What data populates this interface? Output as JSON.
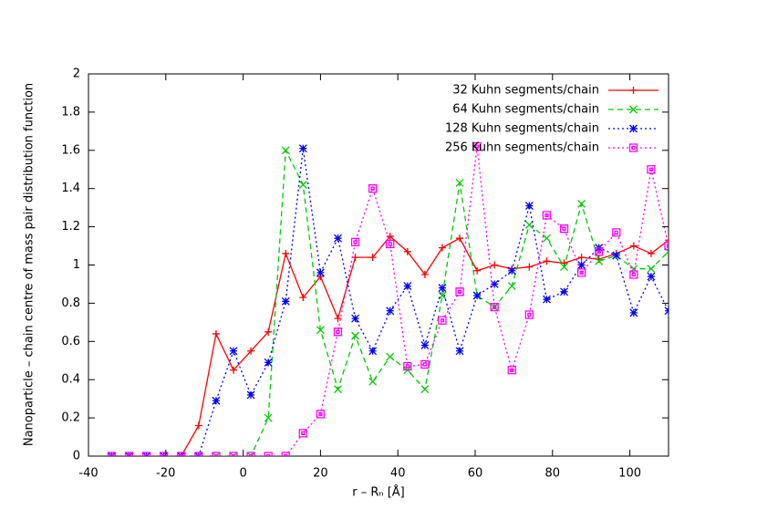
{
  "chart_data": {
    "type": "line",
    "xlabel": "r – Rₙ [Å]",
    "ylabel": "Nanoparticle – chain centre of mass pair distribution function",
    "x": [
      -34,
      -29.5,
      -25,
      -20.5,
      -16,
      -11.5,
      -7,
      -2.5,
      2,
      6.5,
      11,
      15.5,
      20,
      24.5,
      29,
      33.5,
      38,
      42.5,
      47,
      51.5,
      56,
      60.5,
      65,
      69.5,
      74,
      78.5,
      83,
      87.5,
      92,
      96.5,
      101,
      105.5,
      110
    ],
    "series": [
      {
        "name": "32 Kuhn segments/chain",
        "color": "#ff0000",
        "linestyle": "solid",
        "marker": "plus",
        "values": [
          0,
          0,
          0,
          0,
          0,
          0.16,
          0.64,
          0.45,
          0.55,
          0.65,
          1.06,
          0.83,
          0.94,
          0.72,
          1.04,
          1.04,
          1.15,
          1.07,
          0.95,
          1.09,
          1.14,
          0.97,
          1.0,
          0.98,
          0.99,
          1.02,
          1.01,
          1.04,
          1.03,
          1.06,
          1.1,
          1.06,
          1.13
        ]
      },
      {
        "name": "64 Kuhn segments/chain",
        "color": "#00cc00",
        "linestyle": "dashed",
        "marker": "cross",
        "values": [
          0,
          0,
          0,
          0,
          0,
          0,
          0,
          0,
          0,
          0.2,
          1.6,
          1.42,
          0.66,
          0.35,
          0.63,
          0.39,
          0.52,
          0.45,
          0.35,
          0.84,
          1.43,
          0.84,
          0.78,
          0.89,
          1.21,
          1.14,
          0.99,
          1.32,
          1.02,
          1.05,
          0.98,
          0.98,
          1.07
        ]
      },
      {
        "name": "128 Kuhn segments/chain",
        "color": "#0000ff",
        "linestyle": "dotted",
        "marker": "star",
        "values": [
          0,
          0,
          0,
          0,
          0,
          0,
          0.29,
          0.55,
          0.32,
          0.49,
          0.81,
          1.61,
          0.96,
          1.14,
          0.72,
          0.55,
          0.76,
          0.89,
          0.58,
          0.88,
          0.55,
          0.84,
          0.9,
          0.97,
          1.31,
          0.82,
          0.86,
          1.0,
          1.09,
          1.05,
          0.75,
          0.94,
          0.76
        ]
      },
      {
        "name": "256 Kuhn segments/chain",
        "color": "#ff00ff",
        "linestyle": "dotted",
        "marker": "square",
        "values": [
          0,
          0,
          0,
          0,
          0,
          0,
          0,
          0,
          0,
          0,
          0,
          0.12,
          0.22,
          0.65,
          1.12,
          1.4,
          1.11,
          0.47,
          0.48,
          0.71,
          0.86,
          1.62,
          0.78,
          0.45,
          0.74,
          1.26,
          1.19,
          0.96,
          1.07,
          1.17,
          0.95,
          1.5,
          1.1
        ]
      }
    ],
    "xlim": [
      -40,
      110
    ],
    "xticks": [
      -40,
      -20,
      0,
      20,
      40,
      60,
      80,
      100
    ],
    "ylim": [
      0,
      2
    ],
    "yticks": [
      0,
      0.2,
      0.4,
      0.6,
      0.8,
      1,
      1.2,
      1.4,
      1.6,
      1.8,
      2
    ],
    "legend": "top-right",
    "grid": false
  }
}
